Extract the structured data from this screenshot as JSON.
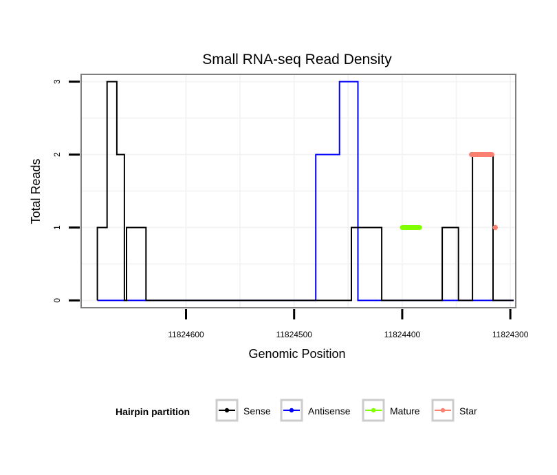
{
  "chart_data": {
    "type": "line",
    "title": "Small RNA-seq Read Density",
    "xlabel": "Genomic Position",
    "ylabel": "Total Reads",
    "x_reversed": true,
    "xlim": [
      11824295,
      11824697
    ],
    "ylim": [
      -0.1,
      3.1
    ],
    "x_ticks": [
      {
        "value": 11824600,
        "label": "11824600"
      },
      {
        "value": 11824500,
        "label": "11824500"
      },
      {
        "value": 11824400,
        "label": "11824400"
      },
      {
        "value": 11824300,
        "label": "11824300"
      }
    ],
    "y_ticks": [
      {
        "value": 0,
        "label": "0"
      },
      {
        "value": 1,
        "label": "1"
      },
      {
        "value": 2,
        "label": "2"
      },
      {
        "value": 3,
        "label": "3"
      }
    ],
    "grid": true,
    "legend": {
      "title": "Hairpin partition",
      "position": "bottom",
      "entries": [
        {
          "name": "Sense",
          "color": "#000000"
        },
        {
          "name": "Antisense",
          "color": "#0000ff"
        },
        {
          "name": "Mature",
          "color": "#7fff00"
        },
        {
          "name": "Star",
          "color": "#fa8072"
        }
      ]
    },
    "series": [
      {
        "name": "Antisense",
        "color": "#0000ff",
        "points": [
          [
            11824682,
            0
          ],
          [
            11824480,
            0
          ],
          [
            11824480,
            2
          ],
          [
            11824458,
            2
          ],
          [
            11824458,
            3
          ],
          [
            11824441,
            3
          ],
          [
            11824441,
            0
          ],
          [
            11824297,
            0
          ]
        ]
      },
      {
        "name": "Sense",
        "color": "#000000",
        "points": [
          [
            11824682,
            0
          ],
          [
            11824682,
            1
          ],
          [
            11824673,
            1
          ],
          [
            11824673,
            3
          ],
          [
            11824664,
            3
          ],
          [
            11824664,
            2
          ],
          [
            11824657,
            2
          ],
          [
            11824657,
            0
          ],
          [
            11824655,
            0
          ],
          [
            11824655,
            1
          ],
          [
            11824637,
            1
          ],
          [
            11824637,
            0
          ],
          [
            11824447,
            0
          ],
          [
            11824447,
            1
          ],
          [
            11824419,
            1
          ],
          [
            11824419,
            0
          ],
          [
            11824363,
            0
          ],
          [
            11824363,
            1
          ],
          [
            11824348,
            1
          ],
          [
            11824348,
            0
          ],
          [
            11824335,
            0
          ],
          [
            11824335,
            2
          ],
          [
            11824316,
            2
          ],
          [
            11824316,
            0
          ],
          [
            11824297,
            0
          ]
        ]
      },
      {
        "name": "Mature",
        "color": "#7fff00",
        "points": [
          [
            11824400,
            1
          ],
          [
            11824384,
            1
          ]
        ]
      },
      {
        "name": "Star",
        "color": "#fa8072",
        "points": [
          [
            11824336,
            2
          ],
          [
            11824317,
            2
          ]
        ]
      },
      {
        "name": "Star",
        "color": "#fa8072",
        "points": [
          [
            11824314,
            1
          ]
        ]
      }
    ]
  }
}
